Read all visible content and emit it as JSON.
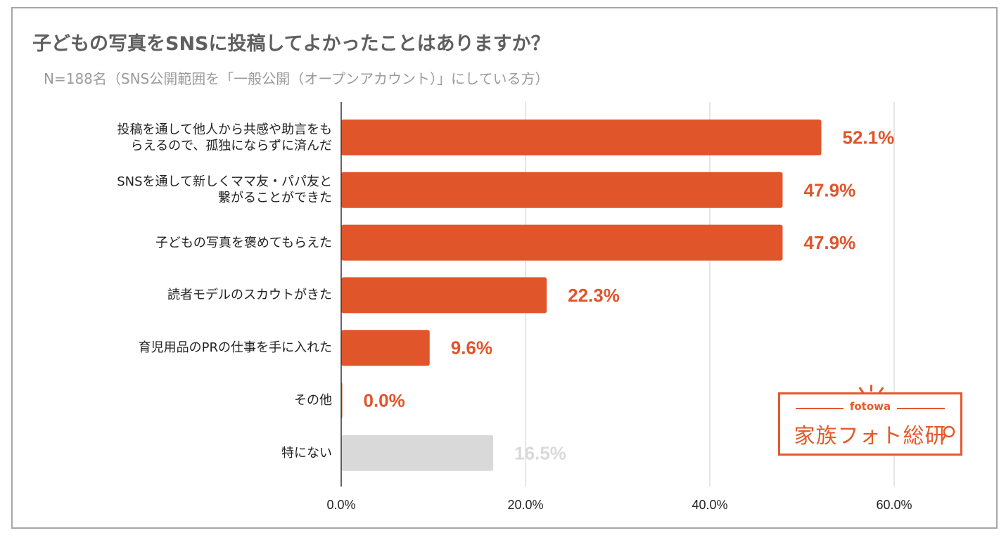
{
  "title": "子どもの写真をSNSに投稿してよかったことはありますか？",
  "subtitle": "N=188名（SNS公開範囲を「一般公開（オープンアカウント）」にしている方）",
  "colors": {
    "primary_bar": "#e0552a",
    "muted_bar": "#d9d9d9",
    "primary_label": "#e0552a",
    "muted_label": "#d9d9d9",
    "grid": "#cccccc",
    "axis": "#333333"
  },
  "chart_data": {
    "type": "bar",
    "orientation": "horizontal",
    "categories": [
      [
        "投稿を通して他人から共感や助言をも",
        "らえるので、孤独にならずに済んだ"
      ],
      [
        "SNSを通して新しくママ友・パパ友と",
        "繋がることができた"
      ],
      [
        "子どもの写真を褒めてもらえた"
      ],
      [
        "読者モデルのスカウトがきた"
      ],
      [
        "育児用品のPRの仕事を手に入れた"
      ],
      [
        "その他"
      ],
      [
        "特にない"
      ]
    ],
    "values": [
      52.1,
      47.9,
      47.9,
      22.3,
      9.6,
      0.0,
      16.5
    ],
    "value_labels": [
      "52.1%",
      "47.9%",
      "47.9%",
      "22.3%",
      "9.6%",
      "0.0%",
      "16.5%"
    ],
    "muted": [
      false,
      false,
      false,
      false,
      false,
      false,
      true
    ],
    "x_ticks": [
      0,
      20,
      40,
      60
    ],
    "x_tick_labels": [
      "0.0%",
      "20.0%",
      "40.0%",
      "60.0%"
    ],
    "xlim": [
      0,
      70
    ],
    "grid": true,
    "legend": "none"
  },
  "logo": {
    "small": "fotowa",
    "big": "家族フォト総研",
    "icon": "magnifier-icon"
  }
}
